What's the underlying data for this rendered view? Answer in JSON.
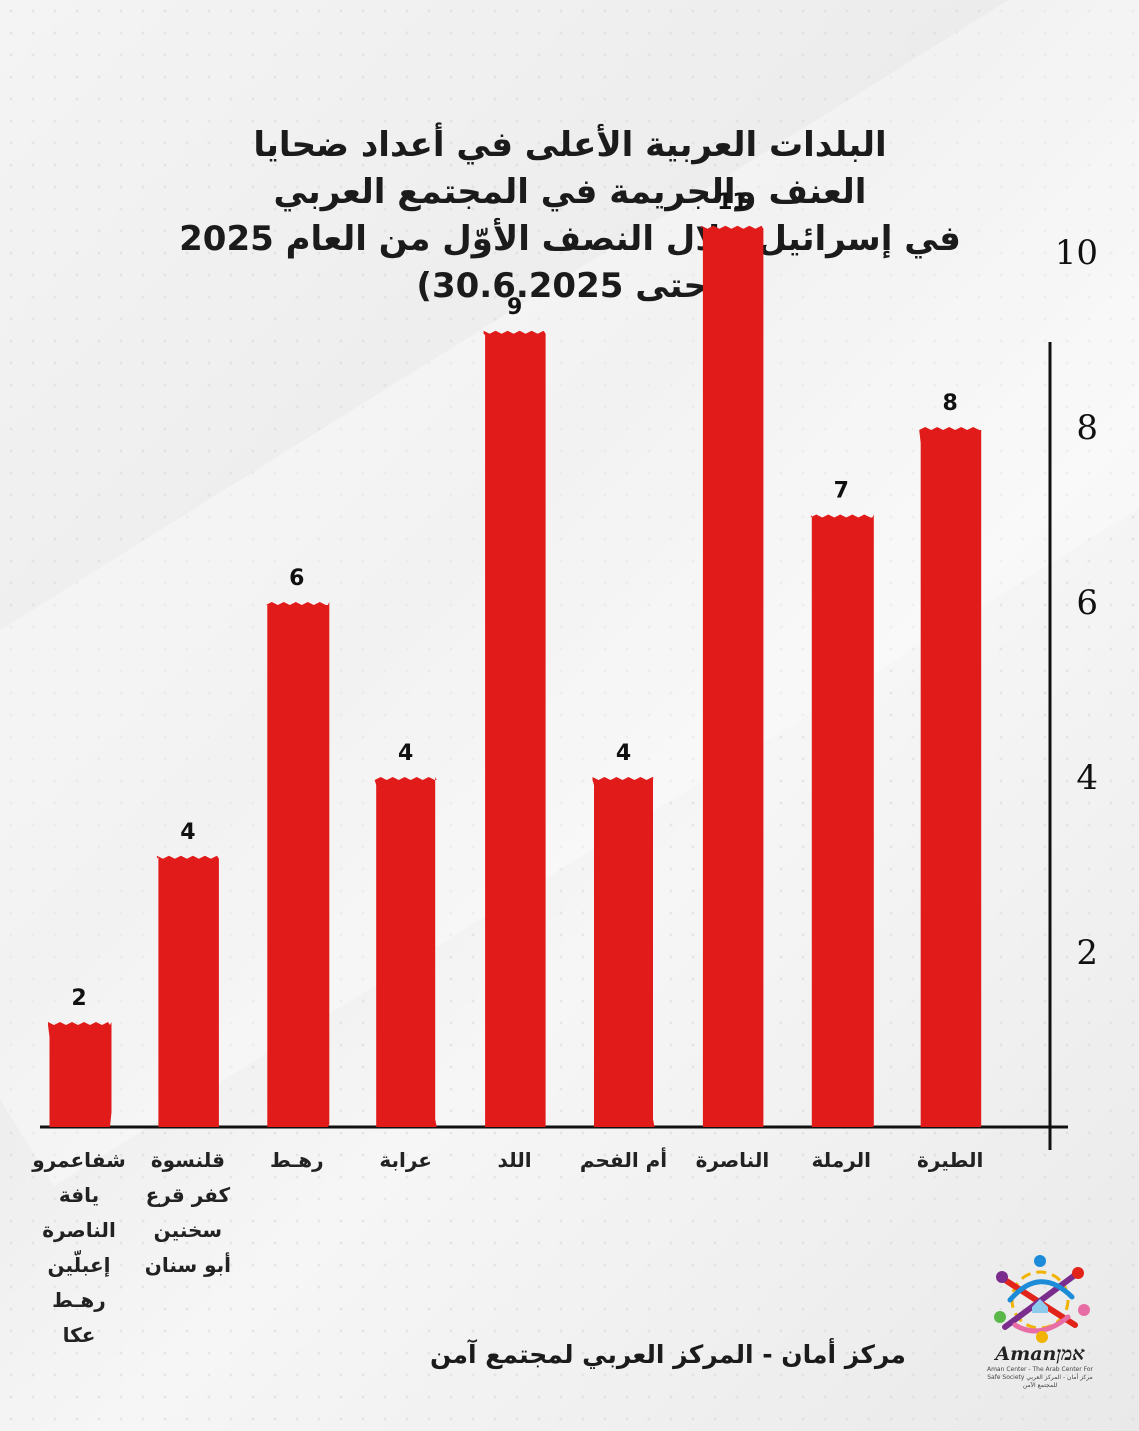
{
  "header": {
    "title_lines": [
      "البلدات العربية الأعلى في أعداد ضحايا",
      "العنف والجريمة في المجتمع العربي",
      "في إسرائيل خلال النصف الأوّل من العام 2025",
      "(حتى 30.6.2025)"
    ]
  },
  "chart_data": {
    "type": "bar",
    "categories": [
      [
        "شفاعمرو",
        "يافة الناصرة",
        "إعبلّين",
        "رهـط",
        "عكا"
      ],
      [
        "قلنسوة",
        "كفر قرع",
        "سخنين",
        "أبو سنان"
      ],
      [
        "رهـط"
      ],
      [
        "عرابة"
      ],
      [
        "اللد"
      ],
      [
        "أم الفحم"
      ],
      [
        "الناصرة"
      ],
      [
        "الرملة"
      ],
      [
        "الطيرة"
      ]
    ],
    "values": [
      2,
      4,
      6,
      4,
      9,
      4,
      11,
      7,
      8
    ],
    "bar_heights": [
      1.2,
      3.1,
      6.0,
      4.0,
      9.1,
      4.0,
      10.3,
      7.0,
      8.0
    ],
    "y_ticks": [
      "2",
      "4",
      "6",
      "8",
      "10"
    ],
    "y_axis_side": "right",
    "ylim": [
      0,
      11
    ],
    "bar_color": "#e11a1a",
    "grid": false
  },
  "footer": {
    "text": "مركز أمان  - المركز العربي لمجتمع آمن"
  },
  "logo": {
    "name": "Amanאמן",
    "subtitle": "Aman Center - The Arab Center For Safe Society\nمركز أمان - المركز العربي للمجتمع الآمن"
  }
}
